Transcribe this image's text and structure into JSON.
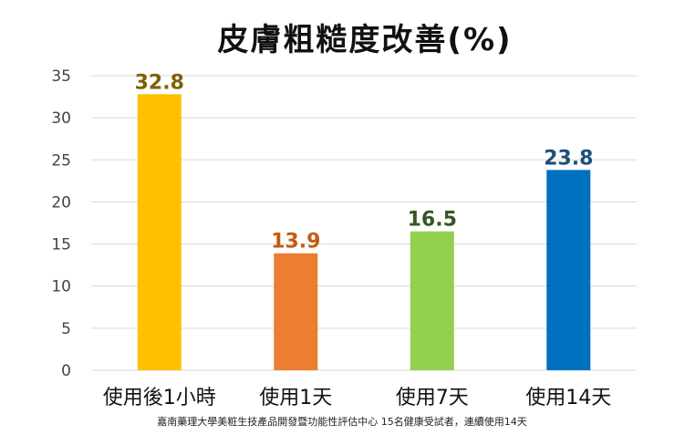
{
  "chart_data": {
    "type": "bar",
    "title": "皮膚粗糙度改善(%)",
    "categories": [
      "使用後1小時",
      "使用1天",
      "使用7天",
      "使用14天"
    ],
    "values": [
      32.8,
      13.9,
      16.5,
      23.8
    ],
    "data_labels": [
      "32.8",
      "13.9",
      "16.5",
      "23.8"
    ],
    "bar_colors": [
      "#FFC000",
      "#ED7D31",
      "#92D050",
      "#0070C0"
    ],
    "label_colors": [
      "#7F6000",
      "#C55A11",
      "#375623",
      "#1F4E79"
    ],
    "yticks": [
      "0",
      "5",
      "10",
      "15",
      "20",
      "25",
      "30",
      "35"
    ],
    "ylim": [
      0,
      35
    ],
    "grid": true,
    "xlabel": "",
    "ylabel": "",
    "footnote": "嘉南藥理大學美粧生技產品開發暨功能性評估中心 15名健康受試者，連續使用14天"
  }
}
